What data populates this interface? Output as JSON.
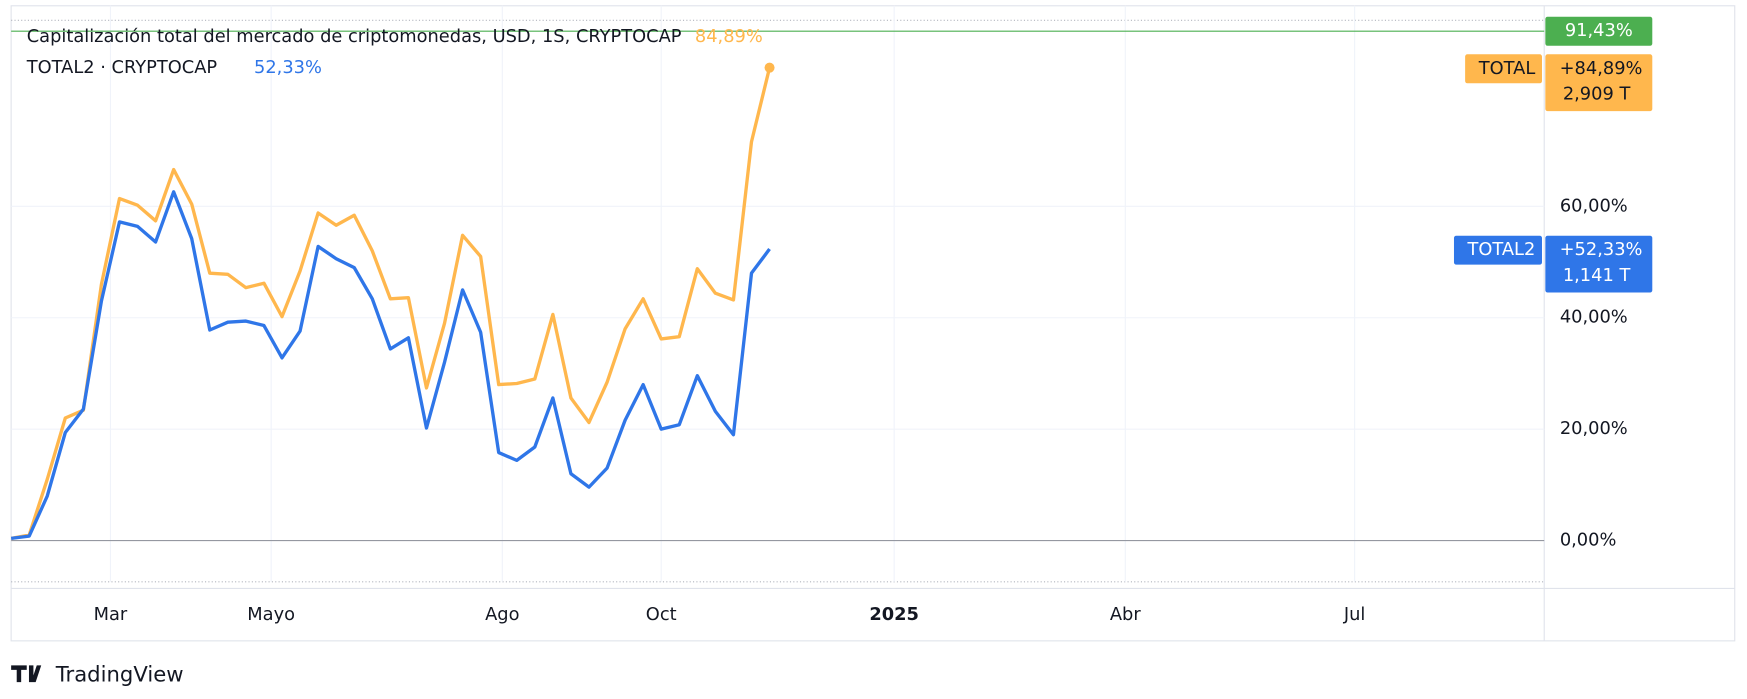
{
  "chart_data": {
    "type": "line",
    "title": "Capitalización total del mercado de criptomonedas, USD, 1S, CRYPTOCAP",
    "legend_secondary": "TOTAL2 · CRYPTOCAP",
    "x": [
      0,
      1,
      2,
      3,
      4,
      5,
      6,
      7,
      8,
      9,
      10,
      11,
      12,
      13,
      14,
      15,
      16,
      17,
      18,
      19,
      20,
      21,
      22,
      23,
      24,
      25,
      26,
      27,
      28,
      29,
      30,
      31,
      32,
      33,
      34,
      35,
      36,
      37,
      38,
      39,
      40,
      41,
      42
    ],
    "series": [
      {
        "name": "TOTAL",
        "color": "#ffb74d",
        "last_value_label": "84,89%",
        "change_label": "+84,89%",
        "market_cap_label": "2,909 T",
        "values": [
          0.4,
          1,
          11,
          22,
          23.4,
          46,
          61.4,
          60.2,
          57.4,
          66.6,
          60.4,
          48,
          47.8,
          45.4,
          46.2,
          40.2,
          48.4,
          58.8,
          56.6,
          58.4,
          52,
          43.4,
          43.6,
          27.4,
          39,
          54.8,
          51,
          28,
          28.2,
          29,
          40.6,
          25.6,
          21.2,
          28.4,
          38,
          43.4,
          36.2,
          36.6,
          48.8,
          44.4,
          43.2,
          71.6,
          84.89
        ]
      },
      {
        "name": "TOTAL2",
        "color": "#2f76e8",
        "last_value_label": "52,33%",
        "change_label": "+52,33%",
        "market_cap_label": "1,141 T",
        "values": [
          0.4,
          0.8,
          8,
          19.4,
          23.6,
          43,
          57.2,
          56.4,
          53.6,
          62.6,
          54.2,
          37.8,
          39.2,
          39.4,
          38.6,
          32.8,
          37.6,
          52.8,
          50.6,
          49,
          43.4,
          34.4,
          36.4,
          20.2,
          32,
          45,
          37.4,
          15.8,
          14.4,
          16.8,
          25.6,
          12,
          9.6,
          13,
          21.6,
          28,
          20,
          20.8,
          29.6,
          23.2,
          19,
          48,
          52.33
        ]
      }
    ],
    "high_line": {
      "value": 91.43,
      "label": "91,43%",
      "color": "#4caf50"
    },
    "xlim": [
      0,
      84.9
    ],
    "xticks": [
      {
        "value": 5.5,
        "label": "Mar"
      },
      {
        "value": 14.4,
        "label": "Mayo"
      },
      {
        "value": 27.2,
        "label": "Ago"
      },
      {
        "value": 36,
        "label": "Oct"
      },
      {
        "value": 48.9,
        "label": "2025"
      },
      {
        "value": 61.7,
        "label": "Abr"
      },
      {
        "value": 74.4,
        "label": "Jul"
      }
    ],
    "ylim": [
      -7.4,
      96
    ],
    "yticks": [
      {
        "value": 0,
        "label": "0,00%"
      },
      {
        "value": 20,
        "label": "20,00%"
      },
      {
        "value": 40,
        "label": "40,00%"
      },
      {
        "value": 60,
        "label": "60,00%"
      }
    ],
    "grid": true,
    "brand": "TradingView"
  }
}
